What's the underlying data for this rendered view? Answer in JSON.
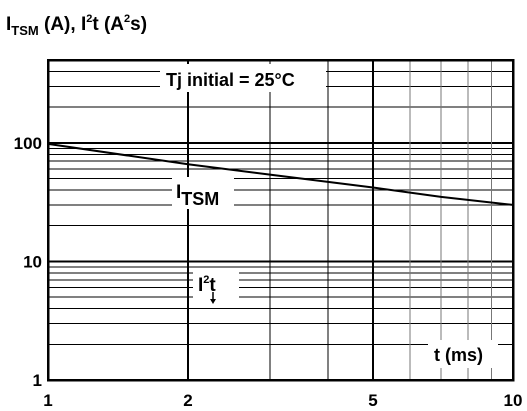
{
  "chart_data": {
    "type": "line",
    "title": "I",
    "title_sub": "TSM",
    "title_rest": " (A), I",
    "title_sup": "2",
    "title_end": "t (A",
    "title_sup2": "2",
    "title_tail": "s)",
    "xscale": "log",
    "yscale": "log",
    "xlim": [
      1,
      10
    ],
    "ylim": [
      1,
      500
    ],
    "grid": true,
    "x_ticks": [
      {
        "value": 1,
        "label": "1"
      },
      {
        "value": 2,
        "label": "2"
      },
      {
        "value": 5,
        "label": "5"
      },
      {
        "value": 10,
        "label": "10"
      }
    ],
    "y_ticks": [
      {
        "value": 1,
        "label": "1"
      },
      {
        "value": 10,
        "label": "10"
      },
      {
        "value": 100,
        "label": "100"
      }
    ],
    "series": [
      {
        "name": "I",
        "name_sub": "TSM",
        "x": [
          1,
          2,
          3,
          5,
          7,
          10
        ],
        "y": [
          98,
          66,
          54,
          42,
          35,
          30
        ]
      }
    ],
    "annotations": {
      "tj_label": "Tj initial = 25°C",
      "i2t_main": "I",
      "i2t_sup": "2",
      "i2t_end": "t",
      "xaxis_label": "t (ms)"
    }
  }
}
